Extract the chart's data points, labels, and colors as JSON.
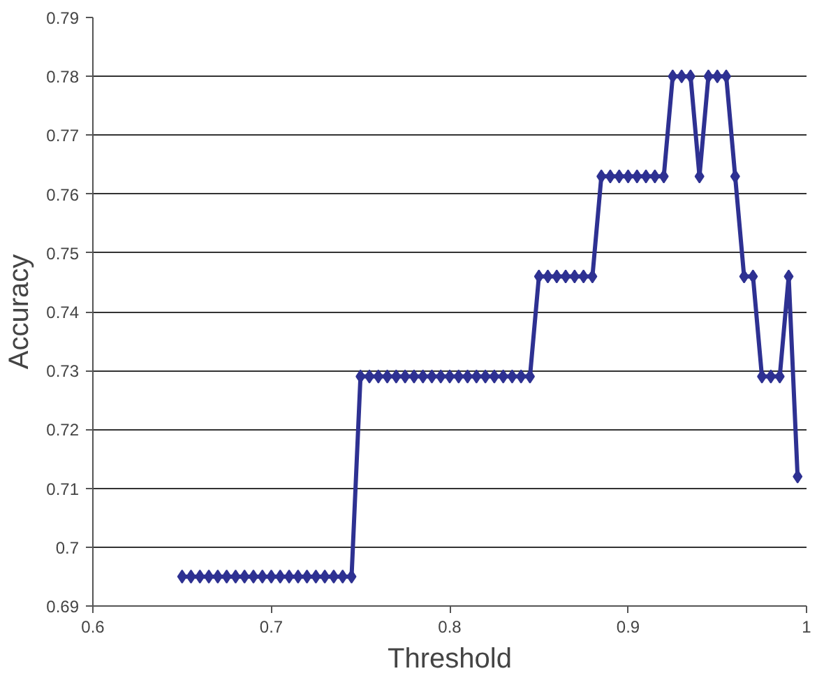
{
  "chart_data": {
    "type": "line",
    "xlabel": "Threshold",
    "ylabel": "Accuracy",
    "x": [
      0.65,
      0.655,
      0.66,
      0.665,
      0.67,
      0.675,
      0.68,
      0.685,
      0.69,
      0.695,
      0.7,
      0.705,
      0.71,
      0.715,
      0.72,
      0.725,
      0.73,
      0.735,
      0.74,
      0.745,
      0.75,
      0.755,
      0.76,
      0.765,
      0.77,
      0.775,
      0.78,
      0.785,
      0.79,
      0.795,
      0.8,
      0.805,
      0.81,
      0.815,
      0.82,
      0.825,
      0.83,
      0.835,
      0.84,
      0.845,
      0.85,
      0.855,
      0.86,
      0.865,
      0.87,
      0.875,
      0.88,
      0.885,
      0.89,
      0.895,
      0.9,
      0.905,
      0.91,
      0.915,
      0.92,
      0.925,
      0.93,
      0.935,
      0.94,
      0.945,
      0.95,
      0.955,
      0.96,
      0.965,
      0.97,
      0.975,
      0.98,
      0.985,
      0.99,
      0.995
    ],
    "series": [
      {
        "color": "#2e3192",
        "values": [
          0.695,
          0.695,
          0.695,
          0.695,
          0.695,
          0.695,
          0.695,
          0.695,
          0.695,
          0.695,
          0.695,
          0.695,
          0.695,
          0.695,
          0.695,
          0.695,
          0.695,
          0.695,
          0.695,
          0.695,
          0.729,
          0.729,
          0.729,
          0.729,
          0.729,
          0.729,
          0.729,
          0.729,
          0.729,
          0.729,
          0.729,
          0.729,
          0.729,
          0.729,
          0.729,
          0.729,
          0.729,
          0.729,
          0.729,
          0.729,
          0.746,
          0.746,
          0.746,
          0.746,
          0.746,
          0.746,
          0.746,
          0.763,
          0.763,
          0.763,
          0.763,
          0.763,
          0.763,
          0.763,
          0.763,
          0.78,
          0.78,
          0.78,
          0.763,
          0.78,
          0.78,
          0.78,
          0.763,
          0.746,
          0.746,
          0.729,
          0.729,
          0.729,
          0.746,
          0.712
        ]
      }
    ],
    "xlim": [
      0.6,
      1
    ],
    "xticks": [
      0.6,
      0.7,
      0.8,
      0.9,
      1
    ],
    "ylim": [
      0.69,
      0.79
    ],
    "yticks": [
      0.69,
      0.7,
      0.71,
      0.72,
      0.73,
      0.74,
      0.75,
      0.76,
      0.77,
      0.78,
      0.79
    ],
    "grid": "y",
    "marker": "diamond",
    "line_style": "solid"
  }
}
